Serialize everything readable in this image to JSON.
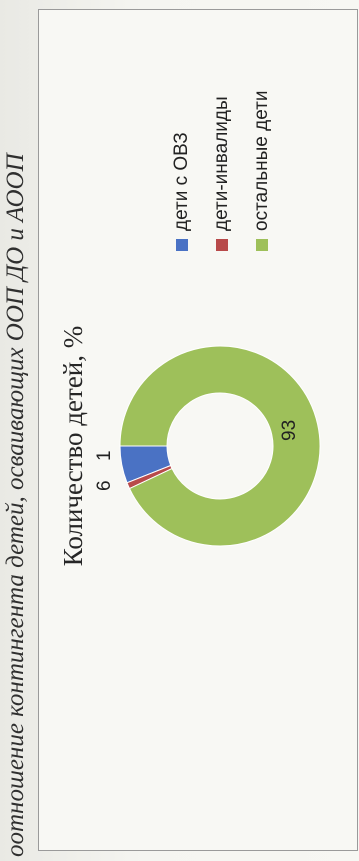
{
  "caption": "оотношение контингента детей, осваивающих ООП ДО и АООП",
  "chart_data": {
    "type": "pie",
    "title": "Количество детей, %",
    "categories": [
      "дети с ОВЗ",
      "дети-инвалиды",
      "остальные дети"
    ],
    "values": [
      6,
      1,
      93
    ],
    "data_labels": [
      "6",
      "1",
      "93"
    ],
    "colors": [
      "#4a72c4",
      "#b84a4a",
      "#9ec05a"
    ],
    "donut": true,
    "legend_position": "right"
  }
}
